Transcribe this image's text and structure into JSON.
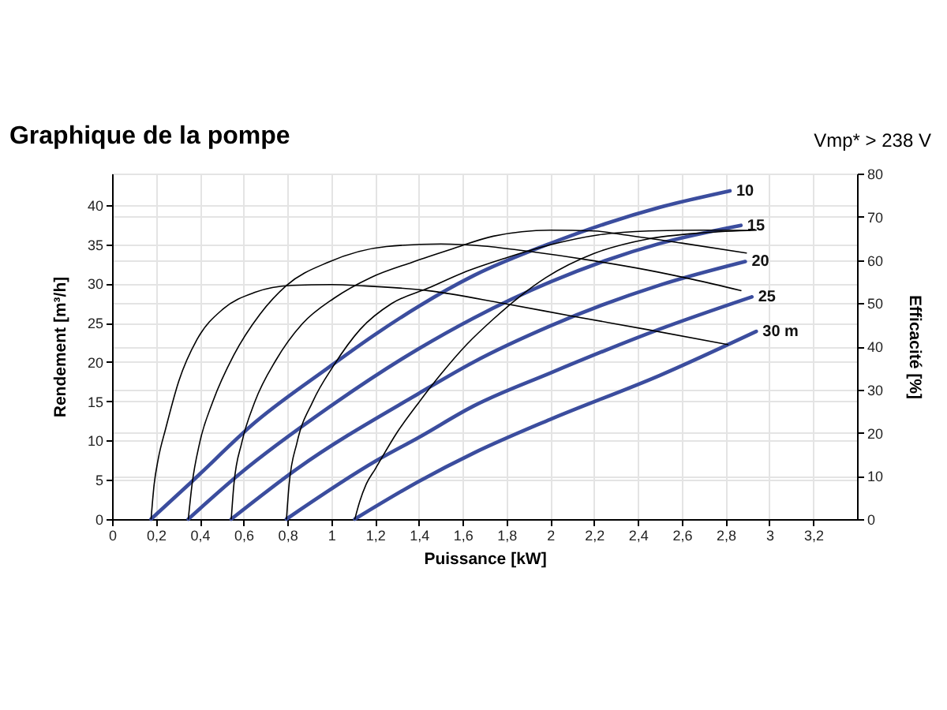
{
  "chart_data": {
    "type": "line",
    "title": "Graphique de la pompe",
    "annotations": [
      "Vmp* > 238 V"
    ],
    "xlabel": "Puissance [kW]",
    "ylabel": "Rendement [m³/h]",
    "y2label": "Efficacité [%]",
    "xlim": [
      0,
      3.4
    ],
    "xticks": [
      0,
      {
        "value": 0.2,
        "label": "0,2"
      },
      {
        "value": 0.4,
        "label": "0,4"
      },
      {
        "value": 0.6,
        "label": "0,6"
      },
      {
        "value": 0.8,
        "label": "0,8"
      },
      1,
      {
        "value": 1.2,
        "label": "1,2"
      },
      {
        "value": 1.4,
        "label": "1,4"
      },
      {
        "value": 1.6,
        "label": "1,6"
      },
      {
        "value": 1.8,
        "label": "1,8"
      },
      2,
      {
        "value": 2.2,
        "label": "2,2"
      },
      {
        "value": 2.4,
        "label": "2,4"
      },
      {
        "value": 2.6,
        "label": "2,6"
      },
      {
        "value": 2.8,
        "label": "2,8"
      },
      3,
      {
        "value": 3.2,
        "label": "3,2"
      }
    ],
    "ylim": [
      0,
      44
    ],
    "yticks": [
      0,
      5,
      10,
      15,
      20,
      25,
      30,
      35,
      40
    ],
    "y2lim": [
      0,
      80
    ],
    "y2ticks": [
      0,
      10,
      20,
      30,
      40,
      50,
      60,
      70,
      80
    ],
    "grid": true,
    "legend": false,
    "line_style": "solid",
    "series": [
      {
        "name": "10",
        "color": "#3b4d9e",
        "x": [
          0.178,
          0.365,
          0.652,
          0.988,
          1.2,
          1.4,
          1.65,
          2.0,
          2.25,
          2.5,
          2.82
        ],
        "values": [
          0,
          4.8,
          12.3,
          19.3,
          23.5,
          27.1,
          31.0,
          35.1,
          37.6,
          39.7,
          41.8
        ]
      },
      {
        "name": "15",
        "color": "#3b4d9e",
        "x": [
          0.348,
          0.58,
          0.988,
          1.4,
          1.65,
          2.0,
          2.25,
          2.5,
          2.87
        ],
        "values": [
          0,
          5.7,
          14.2,
          21.7,
          25.6,
          30.2,
          32.9,
          35.1,
          37.4
        ]
      },
      {
        "name": "20",
        "color": "#3b4d9e",
        "x": [
          0.544,
          0.844,
          1.4,
          1.65,
          2.0,
          2.5,
          2.89
        ],
        "values": [
          0,
          6.4,
          16.0,
          20.0,
          24.6,
          29.8,
          32.8
        ]
      },
      {
        "name": "25",
        "color": "#3b4d9e",
        "x": [
          0.796,
          1.204,
          1.4,
          1.65,
          2.0,
          2.5,
          2.92
        ],
        "values": [
          0,
          7.4,
          10.4,
          14.4,
          18.6,
          24.2,
          28.3
        ]
      },
      {
        "name": "30 m",
        "color": "#3b4d9e",
        "x": [
          1.108,
          1.4,
          1.65,
          2.0,
          2.5,
          2.94
        ],
        "values": [
          0,
          4.8,
          8.4,
          12.7,
          18.3,
          23.9
        ]
      },
      {
        "color": "#000000",
        "axis": "y2",
        "x": [
          0.178,
          0.192,
          0.211,
          0.245,
          0.305,
          0.388,
          0.508,
          0.652,
          0.82,
          1.0,
          1.15,
          1.44,
          1.79,
          2.1,
          2.44,
          2.81
        ],
        "values": [
          0,
          8,
          14,
          21,
          32,
          41.6,
          48.7,
          52.5,
          54.1,
          54.3,
          54,
          52.9,
          49.9,
          47,
          43.9,
          40.4
        ]
      },
      {
        "color": "#000000",
        "axis": "y2",
        "x": [
          0.348,
          0.365,
          0.4,
          0.46,
          0.556,
          0.676,
          0.796,
          0.988,
          1.252,
          1.5,
          1.7,
          1.9,
          2.2,
          2.44,
          2.65,
          2.87
        ],
        "values": [
          0,
          8,
          17.7,
          27.2,
          38,
          47.5,
          54.1,
          59.5,
          63.1,
          63.7,
          63.2,
          62,
          59.8,
          57.7,
          55.5,
          52.9
        ]
      },
      {
        "color": "#000000",
        "axis": "y2",
        "x": [
          0.544,
          0.556,
          0.592,
          0.652,
          0.748,
          0.868,
          1.012,
          1.18,
          1.372,
          1.55,
          1.74,
          2.0,
          2.2,
          2.34,
          2.6,
          2.895
        ],
        "values": [
          0,
          8,
          17.7,
          27.2,
          36.8,
          45.2,
          51.1,
          55.9,
          59.5,
          62.5,
          65.5,
          66.9,
          66.7,
          65.8,
          63.9,
          61.6
        ]
      },
      {
        "color": "#000000",
        "axis": "y2",
        "x": [
          0.796,
          0.808,
          0.844,
          0.916,
          1.012,
          1.132,
          1.276,
          1.444,
          1.6,
          1.8,
          2.0,
          2.22,
          2.45,
          2.7,
          2.91
        ],
        "values": [
          0,
          8,
          17.7,
          27.2,
          35.6,
          43.9,
          49.9,
          53.5,
          57,
          60.5,
          63.5,
          65.8,
          66.7,
          66.9,
          66.8
        ]
      },
      {
        "color": "#000000",
        "axis": "y2",
        "x": [
          1.108,
          1.13,
          1.16,
          1.2,
          1.3,
          1.4,
          1.5,
          1.62,
          1.74,
          1.86,
          1.98,
          2.2,
          2.44,
          2.7,
          2.94
        ],
        "values": [
          0,
          4,
          8.1,
          11.5,
          20,
          27,
          33.5,
          40.5,
          46.3,
          51.5,
          55.9,
          61.5,
          64.8,
          66.3,
          66.9
        ]
      }
    ]
  }
}
